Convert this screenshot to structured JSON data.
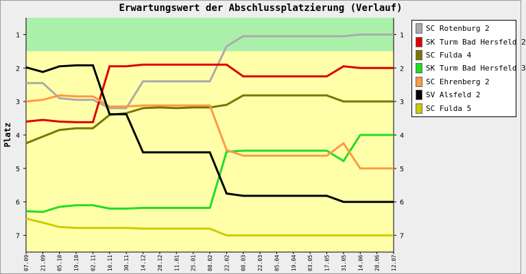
{
  "chart_data": {
    "type": "line",
    "title": "Erwartungswert der Abschlussplatzierung (Verlauf)",
    "ylabel": "Platz",
    "xlabel": "",
    "ylim": [
      0.5,
      7.5
    ],
    "y_inverted": true,
    "y_ticks": [
      "1",
      "2",
      "3",
      "4",
      "5",
      "6",
      "7"
    ],
    "grid": false,
    "legend_position": "right",
    "bands": [
      {
        "from": 0.5,
        "to": 1.5,
        "color": "#aaf0aa"
      },
      {
        "from": 1.5,
        "to": 7.5,
        "color": "#ffffaa"
      }
    ],
    "x": [
      "07.09",
      "21.09",
      "05.10",
      "19.10",
      "02.11",
      "16.11",
      "30.11",
      "14.12",
      "28.12",
      "11.01",
      "25.01",
      "08.02",
      "22.02",
      "08.03",
      "22.03",
      "05.04",
      "19.04",
      "03.05",
      "17.05",
      "31.05",
      "14.06",
      "28.06",
      "12.07"
    ],
    "series": [
      {
        "name": "SC Rotenburg 2",
        "color": "#aaaaaa",
        "values": [
          2.45,
          2.45,
          2.9,
          2.95,
          2.95,
          3.2,
          3.2,
          2.4,
          2.4,
          2.4,
          2.4,
          2.4,
          1.35,
          1.05,
          1.05,
          1.05,
          1.05,
          1.05,
          1.05,
          1.05,
          1.0,
          1.0,
          1.0
        ]
      },
      {
        "name": "SK Turm Bad Hersfeld 2",
        "color": "#dd0000",
        "values": [
          3.6,
          3.55,
          3.6,
          3.62,
          3.62,
          1.95,
          1.95,
          1.9,
          1.9,
          1.9,
          1.9,
          1.9,
          1.9,
          2.25,
          2.25,
          2.25,
          2.25,
          2.25,
          2.25,
          1.95,
          2.0,
          2.0,
          2.0
        ]
      },
      {
        "name": "SC Fulda 4",
        "color": "#777700",
        "values": [
          4.25,
          4.05,
          3.85,
          3.8,
          3.8,
          3.4,
          3.35,
          3.2,
          3.18,
          3.2,
          3.18,
          3.18,
          3.1,
          2.82,
          2.82,
          2.82,
          2.82,
          2.82,
          2.82,
          3.0,
          3.0,
          3.0,
          3.0
        ]
      },
      {
        "name": "SK Turm Bad Hersfeld 3",
        "color": "#22dd22",
        "values": [
          6.28,
          6.3,
          6.15,
          6.1,
          6.1,
          6.2,
          6.2,
          6.18,
          6.18,
          6.18,
          6.18,
          6.18,
          4.5,
          4.47,
          4.47,
          4.47,
          4.47,
          4.47,
          4.47,
          4.78,
          4.0,
          4.0,
          4.0
        ]
      },
      {
        "name": "SC Ehrenberg 2",
        "color": "#ff9944",
        "values": [
          3.0,
          2.95,
          2.82,
          2.85,
          2.85,
          3.15,
          3.15,
          3.12,
          3.12,
          3.12,
          3.12,
          3.12,
          4.45,
          4.62,
          4.62,
          4.62,
          4.62,
          4.62,
          4.62,
          4.25,
          5.0,
          5.0,
          5.0
        ]
      },
      {
        "name": "SV Alsfeld 2",
        "color": "#000000",
        "values": [
          1.98,
          2.12,
          1.95,
          1.92,
          1.92,
          3.38,
          3.38,
          4.52,
          4.52,
          4.52,
          4.52,
          4.52,
          5.75,
          5.82,
          5.82,
          5.82,
          5.82,
          5.82,
          5.82,
          6.0,
          6.0,
          6.0,
          6.0
        ]
      },
      {
        "name": "SC Fulda 5",
        "color": "#cccc00",
        "values": [
          6.5,
          6.62,
          6.75,
          6.78,
          6.78,
          6.78,
          6.78,
          6.8,
          6.8,
          6.8,
          6.8,
          6.8,
          7.0,
          7.0,
          7.0,
          7.0,
          7.0,
          7.0,
          7.0,
          7.0,
          7.0,
          7.0,
          7.0
        ]
      }
    ]
  }
}
